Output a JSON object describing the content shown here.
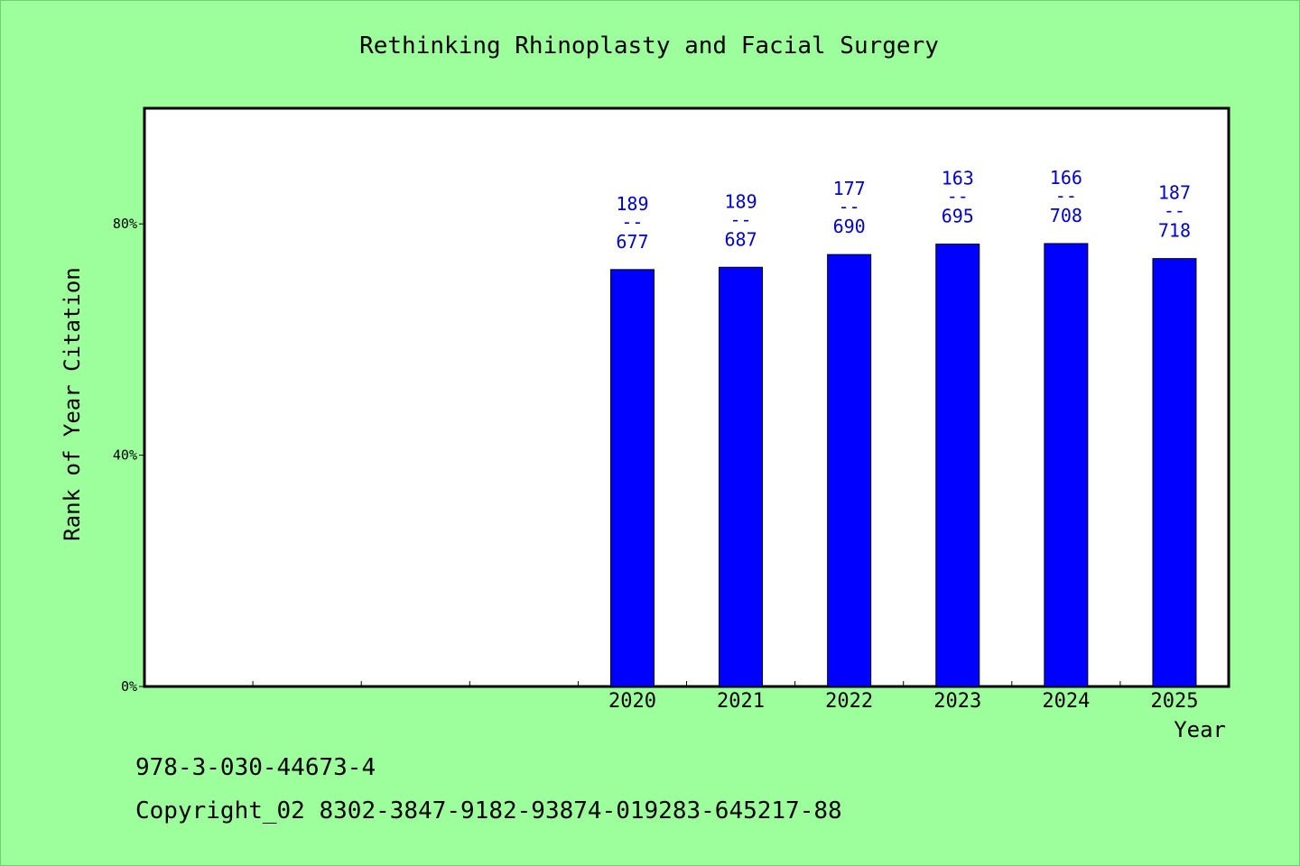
{
  "title": "Rethinking Rhinoplasty and Facial Surgery",
  "isbn": "978-3-030-44673-4",
  "copyright": "Copyright_02 8302-3847-9182-93874-019283-645217-88",
  "colors": {
    "background": "#9cff9c",
    "plot_background": "#ffffff",
    "bar": "#0000ff",
    "label": "#0000cc",
    "axis": "#000000"
  },
  "chart_data": {
    "type": "bar",
    "title": "Rethinking Rhinoplasty and Facial Surgery",
    "xlabel": "Year",
    "ylabel": "Rank of Year Citation",
    "y_ticks": [
      "0%",
      "40%",
      "80%"
    ],
    "ylim": [
      0,
      100
    ],
    "slots": 10,
    "grid": false,
    "categories": [
      "2020",
      "2021",
      "2022",
      "2023",
      "2024",
      "2025"
    ],
    "values": [
      72.1,
      72.5,
      74.7,
      76.5,
      76.6,
      74.0
    ],
    "rank": [
      "189",
      "189",
      "177",
      "163",
      "166",
      "187"
    ],
    "total": [
      "677",
      "687",
      "690",
      "695",
      "708",
      "718"
    ],
    "label_separator": "--"
  }
}
